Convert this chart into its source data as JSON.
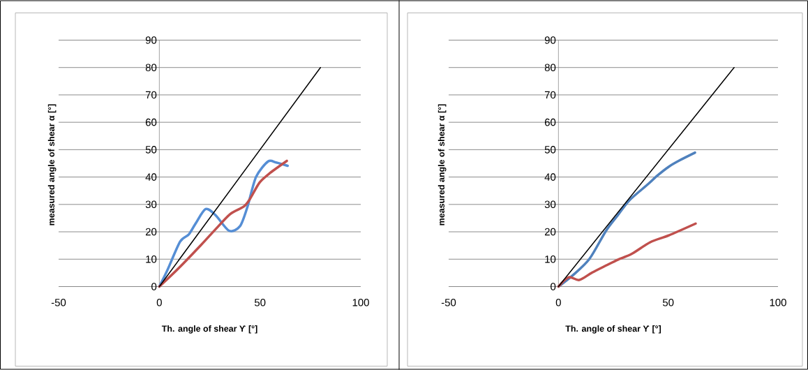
{
  "chart_data": [
    {
      "type": "line",
      "xlabel": "Th. angle of shear Ƴ [°]",
      "ylabel": "measured angle of shear α [°]",
      "xlim": [
        -50,
        100
      ],
      "ylim": [
        0,
        90
      ],
      "xticks": [
        -50,
        0,
        50,
        100
      ],
      "yticks": [
        0,
        10,
        20,
        30,
        40,
        50,
        60,
        70,
        80,
        90
      ],
      "grid": "y",
      "marker": "none",
      "line_style": "solid",
      "series": [
        {
          "color": "#558ed5",
          "x": [
            0,
            4,
            10.3,
            14.6,
            18,
            23,
            28,
            34.6,
            40,
            43.7,
            48,
            54,
            58,
            63.7
          ],
          "values": [
            0,
            6,
            16.4,
            19,
            23,
            28.3,
            26,
            20.4,
            22,
            29,
            40,
            45.7,
            45.3,
            44.1
          ]
        },
        {
          "color": "#c0504d",
          "x": [
            0,
            10,
            20.6,
            28,
            35.2,
            41.9,
            45,
            49.8,
            55,
            63.3
          ],
          "values": [
            0,
            7,
            15.1,
            21,
            26.5,
            29.2,
            32,
            38,
            41.5,
            45.9
          ]
        },
        {
          "color": "#000000",
          "x": [
            0,
            80
          ],
          "values": [
            0,
            80
          ]
        }
      ]
    },
    {
      "type": "line",
      "xlabel": "Th. angle of shear Ƴ [°]",
      "ylabel": "measured angle of shear α [°]",
      "xlim": [
        -50,
        100
      ],
      "ylim": [
        0,
        90
      ],
      "xticks": [
        -50,
        0,
        50,
        100
      ],
      "yticks": [
        0,
        10,
        20,
        30,
        40,
        50,
        60,
        70,
        80,
        90
      ],
      "grid": "y",
      "marker": "none",
      "line_style": "solid",
      "series": [
        {
          "color": "#4f81bd",
          "x": [
            0,
            6.8,
            14.2,
            21.7,
            27,
            32.3,
            40.8,
            45,
            50.3,
            55,
            62.2
          ],
          "values": [
            0,
            4.3,
            10.2,
            20.4,
            26,
            31.5,
            37.4,
            40.5,
            43.8,
            46,
            48.9
          ]
        },
        {
          "color": "#c0504d",
          "x": [
            0,
            4.7,
            9.5,
            15.3,
            21.7,
            27,
            33.3,
            41.8,
            50.3,
            62.5
          ],
          "values": [
            0,
            3.4,
            2.4,
            5.1,
            7.7,
            9.8,
            11.9,
            16.2,
            18.7,
            23
          ]
        },
        {
          "color": "#000000",
          "x": [
            0,
            80
          ],
          "values": [
            0,
            80
          ]
        }
      ]
    }
  ]
}
